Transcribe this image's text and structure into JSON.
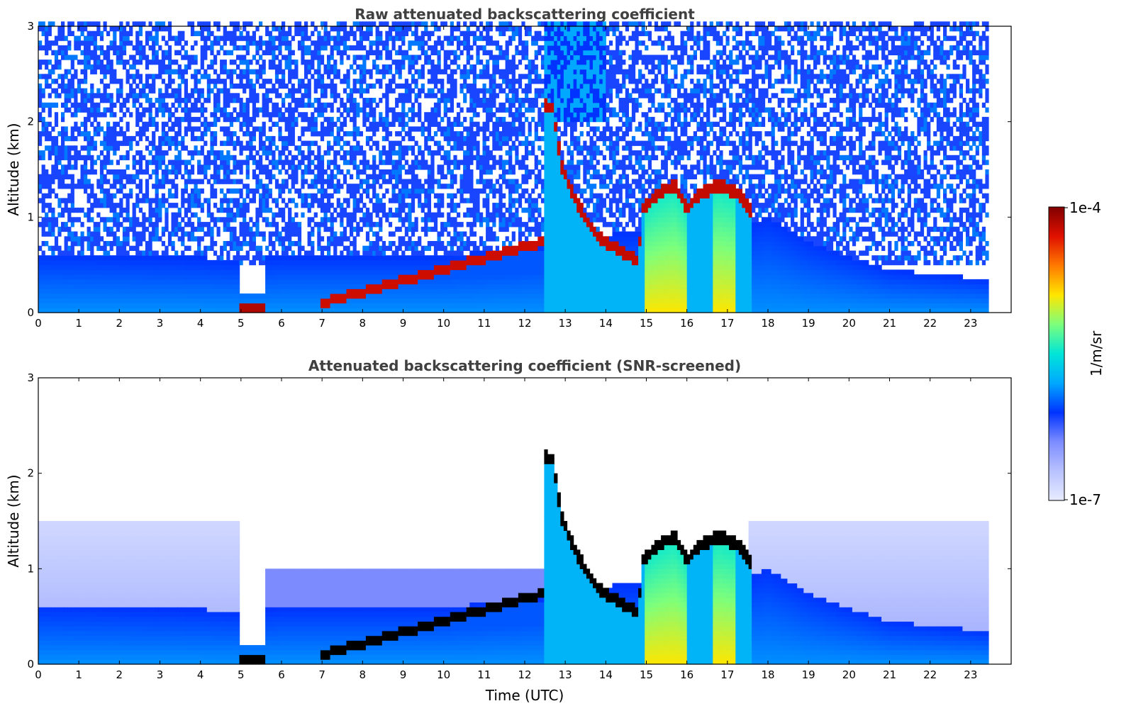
{
  "chart_data": [
    {
      "type": "heatmap",
      "title": "Raw attenuated backscattering coefficient",
      "xlabel": "",
      "ylabel": "Altitude (km)",
      "xlim": [
        0,
        24
      ],
      "ylim": [
        0,
        3
      ],
      "x_ticks": [
        0,
        1,
        2,
        3,
        4,
        5,
        6,
        7,
        8,
        9,
        10,
        11,
        12,
        13,
        14,
        15,
        16,
        17,
        18,
        19,
        20,
        21,
        22,
        23
      ],
      "y_ticks": [
        0,
        1,
        2,
        3
      ],
      "data_end_time": 23.4,
      "grid": false,
      "features": [
        {
          "name": "boundary-layer-aerosol",
          "t": [
            0,
            23.4
          ],
          "top_km": 0.6
        },
        {
          "name": "clear-gap",
          "t": [
            5.0,
            5.6
          ]
        },
        {
          "name": "rising-aerosol-layer",
          "t": [
            7.0,
            12.5
          ],
          "base_km": [
            0.1,
            0.75
          ]
        },
        {
          "name": "cloud-layer",
          "t": [
            12.5,
            17.5
          ],
          "top_km": 2.25
        }
      ]
    },
    {
      "type": "heatmap",
      "title": "Attenuated backscattering coefficient (SNR-screened)",
      "xlabel": "Time (UTC)",
      "ylabel": "Altitude (km)",
      "xlim": [
        0,
        24
      ],
      "ylim": [
        0,
        3
      ],
      "x_ticks": [
        0,
        1,
        2,
        3,
        4,
        5,
        6,
        7,
        8,
        9,
        10,
        11,
        12,
        13,
        14,
        15,
        16,
        17,
        18,
        19,
        20,
        21,
        22,
        23
      ],
      "y_ticks": [
        0,
        1,
        2,
        3
      ],
      "data_end_time": 23.4,
      "grid": false
    }
  ],
  "colorbar": {
    "label": "1/m/sr",
    "min_label": "1e-7",
    "max_label": "1e-4",
    "colormap": "jet with light blue-white low end",
    "colors": [
      "#e8ecff",
      "#b8c2ff",
      "#7c8cff",
      "#0033ff",
      "#00a8ff",
      "#00e6d8",
      "#7cff7c",
      "#ffe600",
      "#ff7a00",
      "#e01000",
      "#800000"
    ]
  }
}
